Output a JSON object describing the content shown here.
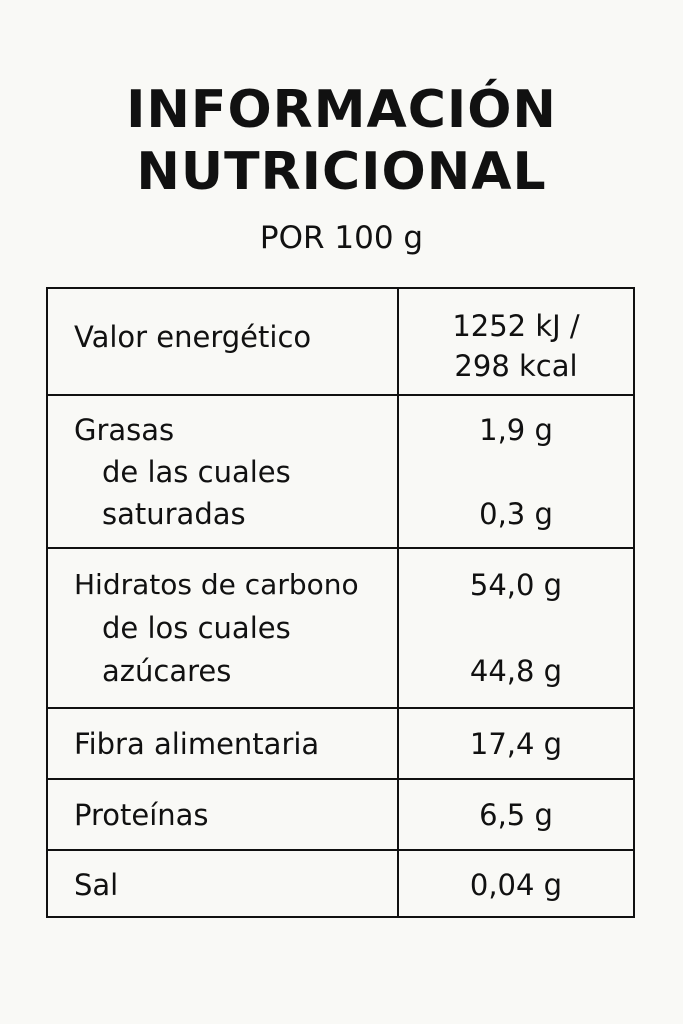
{
  "header": {
    "title_line1": "INFORMACIÓN",
    "title_line2": "NUTRICIONAL",
    "subtitle": "POR 100 g"
  },
  "table": {
    "energy": {
      "label": "Valor energético",
      "value_kj": "1252 kJ /",
      "value_kcal": "298 kcal"
    },
    "fat": {
      "label": "Grasas",
      "value": "1,9 g",
      "sub_label_line1": "de las cuales",
      "sub_label_line2": "saturadas",
      "sub_value": "0,3 g"
    },
    "carbs": {
      "label": "Hidratos de carbono",
      "value": "54,0 g",
      "sub_label_line1": "de los cuales",
      "sub_label_line2": "azúcares",
      "sub_value": "44,8 g"
    },
    "fibre": {
      "label": "Fibra alimentaria",
      "value": "17,4 g"
    },
    "protein": {
      "label": "Proteínas",
      "value": "6,5 g"
    },
    "salt": {
      "label": "Sal",
      "value": "0,04 g"
    }
  }
}
